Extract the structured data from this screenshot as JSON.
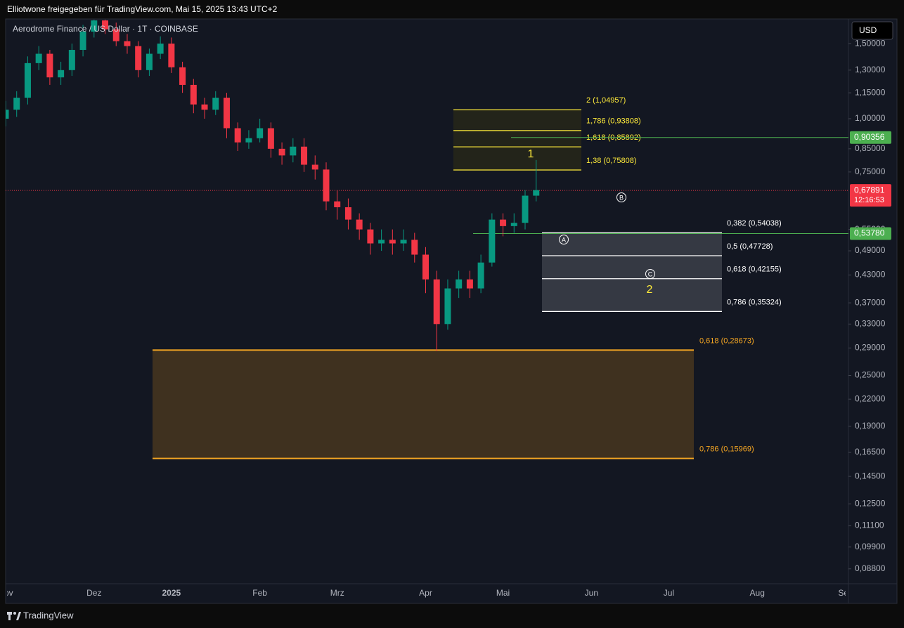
{
  "header": {
    "text": "Elliotwone freigegeben für TradingView.com, Mai 15, 2025 13:43 UTC+2",
    "brand": "TradingView"
  },
  "chart_data": {
    "type": "candlestick",
    "title": "Aerodrome Finance / US Dollar · 1T · COINBASE",
    "currency": "USD",
    "log_scale": true,
    "grid": false,
    "up_color": "#089981",
    "down_color": "#f23645",
    "categories": [
      "Nov",
      null,
      null,
      null,
      null,
      null,
      null,
      null,
      "Dez",
      null,
      null,
      null,
      null,
      null,
      null,
      "2025",
      null,
      null,
      null,
      null,
      null,
      null,
      null,
      "Feb",
      null,
      null,
      null,
      null,
      null,
      null,
      "Mrz",
      null,
      null,
      null,
      null,
      null,
      null,
      null,
      "Apr",
      null,
      null,
      null,
      null,
      null,
      null,
      "Mai",
      null,
      null,
      null,
      null,
      null,
      null,
      null,
      "Jun",
      null,
      null,
      null,
      null,
      null,
      null,
      "Jul",
      null,
      null,
      null,
      null,
      null,
      null,
      null,
      "Aug",
      null,
      null,
      null,
      null,
      null,
      null,
      null,
      "Sep"
    ],
    "open": [
      1.0,
      1.05,
      1.12,
      1.35,
      1.42,
      1.25,
      1.3,
      1.45,
      1.6,
      1.7,
      1.62,
      1.52,
      1.48,
      1.3,
      1.42,
      1.5,
      1.32,
      1.2,
      1.08,
      1.05,
      1.12,
      0.95,
      0.88,
      0.9,
      0.95,
      0.85,
      0.82,
      0.86,
      0.78,
      0.76,
      0.64,
      0.62,
      0.58,
      0.55,
      0.51,
      0.52,
      0.51,
      0.52,
      0.48,
      0.42,
      0.33,
      0.4,
      0.42,
      0.4,
      0.46,
      0.58,
      0.56,
      0.57,
      0.66,
      null,
      null,
      null,
      null,
      null,
      null,
      null,
      null,
      null,
      null,
      null,
      null,
      null,
      null,
      null,
      null,
      null,
      null,
      null,
      null,
      null,
      null,
      null,
      null,
      null,
      null,
      null,
      null
    ],
    "high": [
      1.1,
      1.16,
      1.4,
      1.48,
      1.45,
      1.36,
      1.5,
      1.66,
      1.78,
      1.75,
      1.68,
      1.58,
      1.52,
      1.46,
      1.56,
      1.55,
      1.36,
      1.24,
      1.12,
      1.16,
      1.15,
      0.98,
      0.94,
      1.0,
      0.98,
      0.88,
      0.9,
      0.9,
      0.82,
      0.79,
      0.68,
      0.65,
      0.6,
      0.57,
      0.55,
      0.55,
      0.55,
      0.54,
      0.5,
      0.44,
      0.42,
      0.44,
      0.44,
      0.48,
      0.6,
      0.6,
      0.6,
      0.68,
      0.8,
      null,
      null,
      null,
      null,
      null,
      null,
      null,
      null,
      null,
      null,
      null,
      null,
      null,
      null,
      null,
      null,
      null,
      null,
      null,
      null,
      null,
      null,
      null,
      null,
      null,
      null,
      null,
      null
    ],
    "low": [
      0.96,
      1.01,
      1.08,
      1.3,
      1.2,
      1.2,
      1.26,
      1.4,
      1.55,
      1.58,
      1.48,
      1.42,
      1.25,
      1.26,
      1.38,
      1.28,
      1.15,
      1.03,
      1.0,
      1.02,
      0.9,
      0.84,
      0.85,
      0.88,
      0.81,
      0.78,
      0.79,
      0.75,
      0.72,
      0.61,
      0.58,
      0.55,
      0.52,
      0.48,
      0.49,
      0.48,
      0.49,
      0.46,
      0.39,
      0.285,
      0.32,
      0.38,
      0.38,
      0.39,
      0.45,
      0.53,
      0.54,
      0.55,
      0.64,
      null,
      null,
      null,
      null,
      null,
      null,
      null,
      null,
      null,
      null,
      null,
      null,
      null,
      null,
      null,
      null,
      null,
      null,
      null,
      null,
      null,
      null,
      null,
      null,
      null,
      null,
      null,
      null
    ],
    "close": [
      1.05,
      1.12,
      1.35,
      1.42,
      1.25,
      1.3,
      1.45,
      1.6,
      1.7,
      1.62,
      1.52,
      1.48,
      1.3,
      1.42,
      1.5,
      1.32,
      1.2,
      1.08,
      1.05,
      1.12,
      0.95,
      0.88,
      0.9,
      0.95,
      0.85,
      0.82,
      0.86,
      0.78,
      0.76,
      0.64,
      0.62,
      0.58,
      0.55,
      0.51,
      0.52,
      0.51,
      0.52,
      0.48,
      0.42,
      0.33,
      0.4,
      0.42,
      0.4,
      0.46,
      0.58,
      0.56,
      0.57,
      0.66,
      0.68,
      null,
      null,
      null,
      null,
      null,
      null,
      null,
      null,
      null,
      null,
      null,
      null,
      null,
      null,
      null,
      null,
      null,
      null,
      null,
      null,
      null,
      null,
      null,
      null,
      null,
      null,
      null,
      null
    ],
    "ylim": [
      0.0812,
      1.707
    ],
    "yticks": [
      {
        "value": 1.5,
        "label": "1,50000"
      },
      {
        "value": 1.3,
        "label": "1,30000"
      },
      {
        "value": 1.15,
        "label": "1,15000"
      },
      {
        "value": 1.0,
        "label": "1,00000"
      },
      {
        "value": 0.85,
        "label": "0,85000"
      },
      {
        "value": 0.75,
        "label": "0,75000"
      },
      {
        "value": 0.55,
        "label": "0,55000"
      },
      {
        "value": 0.49,
        "label": "0,49000"
      },
      {
        "value": 0.43,
        "label": "0,43000"
      },
      {
        "value": 0.37,
        "label": "0,37000"
      },
      {
        "value": 0.33,
        "label": "0,33000"
      },
      {
        "value": 0.29,
        "label": "0,29000"
      },
      {
        "value": 0.25,
        "label": "0,25000"
      },
      {
        "value": 0.22,
        "label": "0,22000"
      },
      {
        "value": 0.19,
        "label": "0,19000"
      },
      {
        "value": 0.165,
        "label": "0,16500"
      },
      {
        "value": 0.145,
        "label": "0,14500"
      },
      {
        "value": 0.125,
        "label": "0,12500"
      },
      {
        "value": 0.111,
        "label": "0,11100"
      },
      {
        "value": 0.099,
        "label": "0,09900"
      },
      {
        "value": 0.088,
        "label": "0,08800"
      }
    ],
    "fib_zones": [
      {
        "color": "#f5a623",
        "fill": "#45341f",
        "levels": [
          {
            "value": 0.28673,
            "label": "0,618 (0,28673)"
          },
          {
            "value": 0.15969,
            "label": "0,786 (0,15969)"
          }
        ]
      },
      {
        "color": "#ffffff",
        "fill": "#3a3d47",
        "levels": [
          {
            "value": 0.54038,
            "label": "0,382 (0,54038)"
          },
          {
            "value": 0.47728,
            "label": "0,5 (0,47728)"
          },
          {
            "value": 0.42155,
            "label": "0,618 (0,42155)"
          },
          {
            "value": 0.35324,
            "label": "0,786 (0,35324)"
          }
        ]
      },
      {
        "color": "#ffeb3b",
        "fill": "#262619",
        "levels": [
          {
            "value": 1.04957,
            "label": "2 (1,04957)"
          },
          {
            "value": 0.93808,
            "label": "1,786 (0,93808)"
          },
          {
            "value": 0.85892,
            "label": "1,618 (0,85892)"
          },
          {
            "value": 0.75808,
            "label": "1,38 (0,75808)"
          }
        ]
      }
    ],
    "price_lines": [
      {
        "value": 0.90356,
        "label": "0,90356",
        "color": "#4caf50"
      },
      {
        "value": 0.5378,
        "label": "0,53780",
        "color": "#4caf50"
      }
    ],
    "last_price": {
      "value": 0.67891,
      "label": "0,67891",
      "countdown": "12:16:53",
      "color": "#f23645"
    },
    "wave_labels": [
      "1",
      "2"
    ],
    "circle_labels": [
      "A",
      "B",
      "C"
    ]
  }
}
